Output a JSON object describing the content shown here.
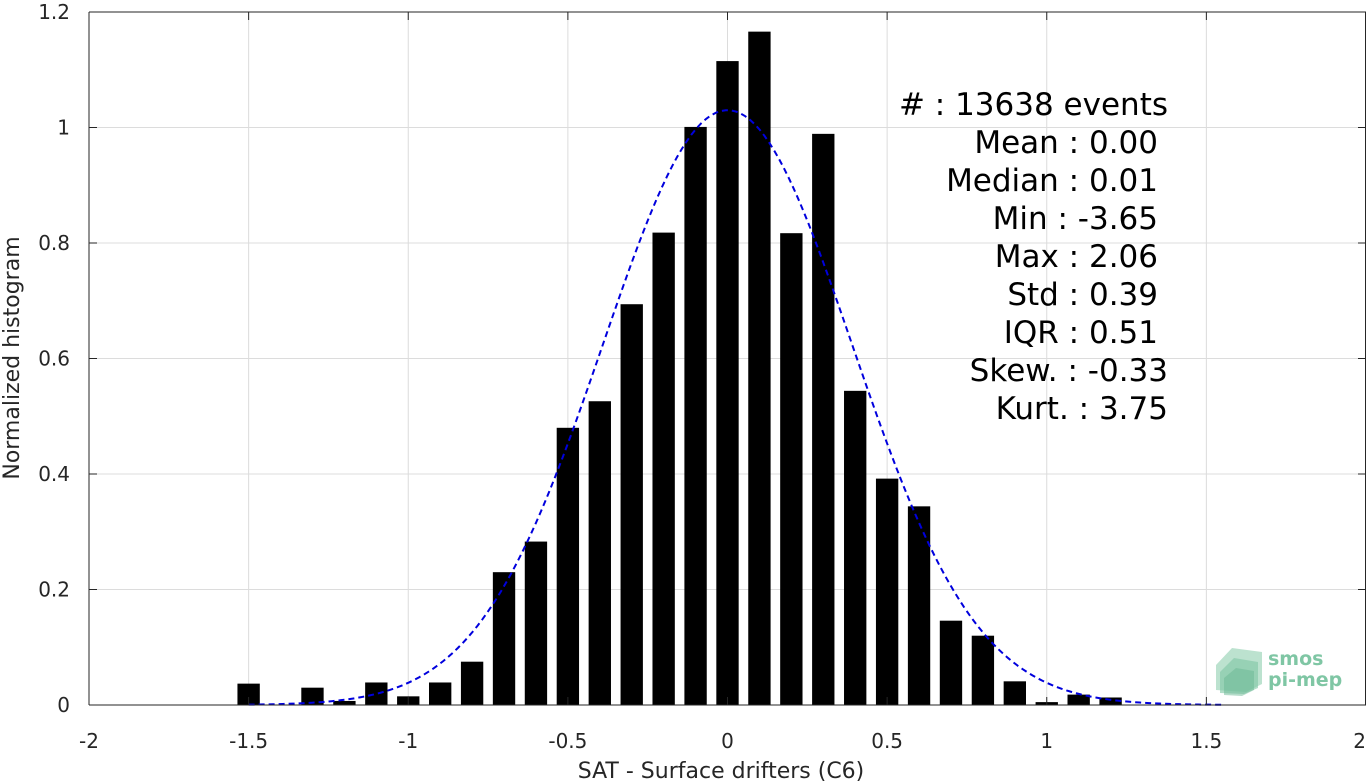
{
  "chart_data": {
    "type": "bar",
    "xlabel": "SAT - Surface drifters (C6)",
    "ylabel": "Normalized histogram",
    "xlim": [
      -2,
      2
    ],
    "ylim": [
      0,
      1.2
    ],
    "xticks": [
      -2,
      -1.5,
      -1,
      -0.5,
      0,
      0.5,
      1,
      1.5,
      2
    ],
    "xtick_labels": [
      "-2",
      "-1.5",
      "-1",
      "-0.5",
      "0",
      "0.5",
      "1",
      "1.5",
      "2"
    ],
    "yticks": [
      0,
      0.2,
      0.4,
      0.6,
      0.8,
      1,
      1.2
    ],
    "ytick_labels": [
      "0",
      "0.2",
      "0.4",
      "0.6",
      "0.8",
      "1",
      "1.2"
    ],
    "grid": true,
    "bar_width": 0.07,
    "bars": {
      "x": [
        -1.5,
        -1.3,
        -1.2,
        -1.1,
        -1.0,
        -0.9,
        -0.8,
        -0.7,
        -0.6,
        -0.5,
        -0.4,
        -0.3,
        -0.2,
        -0.1,
        0.0,
        0.1,
        0.2,
        0.3,
        0.4,
        0.5,
        0.6,
        0.7,
        0.8,
        0.9,
        1.0,
        1.1,
        1.2
      ],
      "values": [
        0.037,
        0.03,
        0.007,
        0.039,
        0.015,
        0.039,
        0.075,
        0.23,
        0.283,
        0.48,
        0.526,
        0.694,
        0.818,
        1.001,
        1.115,
        1.166,
        0.817,
        0.989,
        0.544,
        0.392,
        0.344,
        0.146,
        0.12,
        0.041,
        0.005,
        0.018,
        0.013
      ]
    },
    "fit_curve": {
      "type": "gaussian",
      "mean": 0.0,
      "std": 0.39,
      "peak": 1.03,
      "x_range": [
        -1.5,
        1.55
      ],
      "color": "#0000dd",
      "style": "dashed"
    },
    "bar_color": "#000000",
    "stats": [
      "#  : 13638 events",
      "Mean : 0.00",
      "Median : 0.01",
      "Min : -3.65",
      "Max : 2.06",
      "Std : 0.39",
      "IQR : 0.51",
      "Skew. : -0.33",
      "Kurt. : 3.75"
    ]
  },
  "logo": {
    "line1": "smos",
    "line2": "pi-mep",
    "color": "#7fc6a4"
  }
}
